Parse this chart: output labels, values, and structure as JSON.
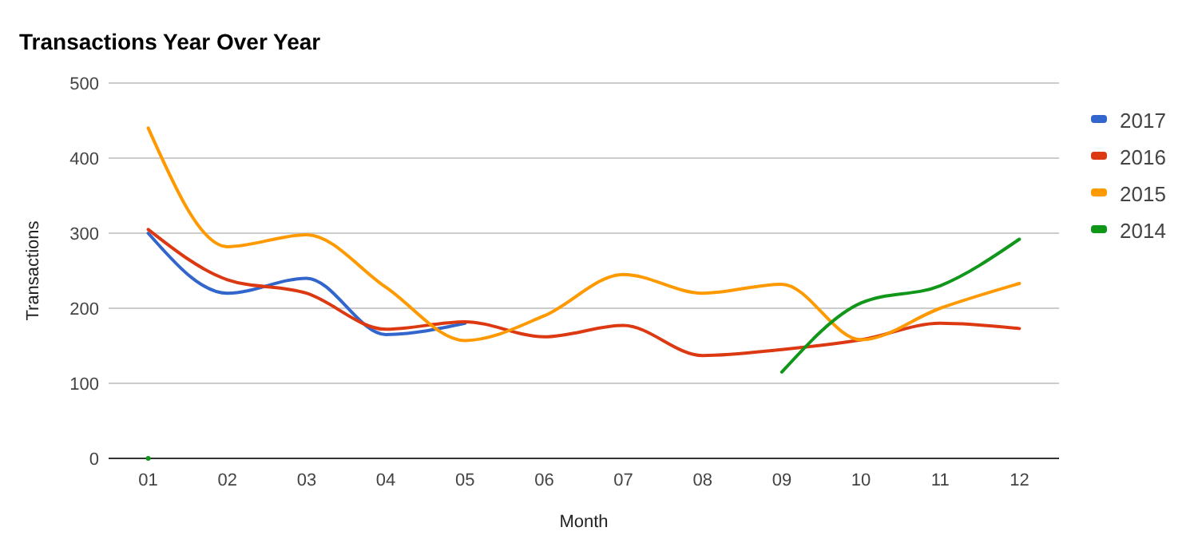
{
  "chart_data": {
    "type": "line",
    "title": "Transactions Year Over Year",
    "xlabel": "Month",
    "ylabel": "Transactions",
    "categories": [
      "01",
      "02",
      "03",
      "04",
      "05",
      "06",
      "07",
      "08",
      "09",
      "10",
      "11",
      "12"
    ],
    "series": [
      {
        "name": "2017",
        "color": "#3366cc",
        "values": [
          300,
          220,
          240,
          165,
          180,
          null,
          null,
          null,
          null,
          null,
          null,
          null
        ]
      },
      {
        "name": "2016",
        "color": "#dc3912",
        "values": [
          305,
          238,
          220,
          172,
          182,
          162,
          177,
          137,
          145,
          158,
          180,
          173
        ]
      },
      {
        "name": "2015",
        "color": "#ff9900",
        "values": [
          440,
          282,
          298,
          228,
          157,
          190,
          245,
          220,
          232,
          158,
          200,
          233
        ]
      },
      {
        "name": "2014",
        "color": "#109618",
        "values": [
          0,
          null,
          null,
          null,
          null,
          null,
          null,
          null,
          115,
          207,
          230,
          292
        ]
      }
    ],
    "ylim": [
      0,
      500
    ],
    "yticks": [
      0,
      100,
      200,
      300,
      400,
      500
    ],
    "grid": "y",
    "legend": "right"
  }
}
